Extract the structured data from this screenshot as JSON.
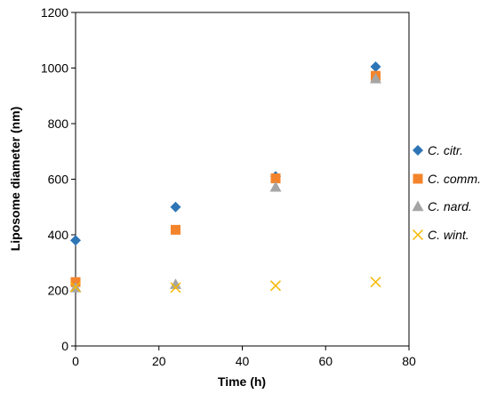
{
  "chart_data": {
    "type": "scatter",
    "title": "",
    "xlabel": "Time (h)",
    "ylabel": "Liposome diameter (nm)",
    "xlim": [
      0,
      80
    ],
    "ylim": [
      0,
      1200
    ],
    "x_ticks": [
      0,
      20,
      40,
      60,
      80
    ],
    "y_ticks": [
      0,
      200,
      400,
      600,
      800,
      1000,
      1200
    ],
    "grid": false,
    "legend_position": "right",
    "series": [
      {
        "name": "C. citr.",
        "marker": "diamond",
        "color": "#2E75B6",
        "points": [
          {
            "x": 0,
            "y": 380
          },
          {
            "x": 24,
            "y": 500
          },
          {
            "x": 48,
            "y": 610
          },
          {
            "x": 72,
            "y": 1005
          }
        ]
      },
      {
        "name": "C. comm.",
        "marker": "square",
        "color": "#F4842B",
        "points": [
          {
            "x": 0,
            "y": 230
          },
          {
            "x": 24,
            "y": 418
          },
          {
            "x": 48,
            "y": 603
          },
          {
            "x": 72,
            "y": 972
          }
        ]
      },
      {
        "name": "C. nard.",
        "marker": "triangle",
        "color": "#A5A5A5",
        "points": [
          {
            "x": 0,
            "y": 210
          },
          {
            "x": 24,
            "y": 222
          },
          {
            "x": 48,
            "y": 572
          },
          {
            "x": 72,
            "y": 962
          }
        ]
      },
      {
        "name": "C. wint.",
        "marker": "x",
        "color": "#F5B800",
        "points": [
          {
            "x": 0,
            "y": 212
          },
          {
            "x": 24,
            "y": 210
          },
          {
            "x": 48,
            "y": 217
          },
          {
            "x": 72,
            "y": 230
          }
        ]
      }
    ]
  }
}
